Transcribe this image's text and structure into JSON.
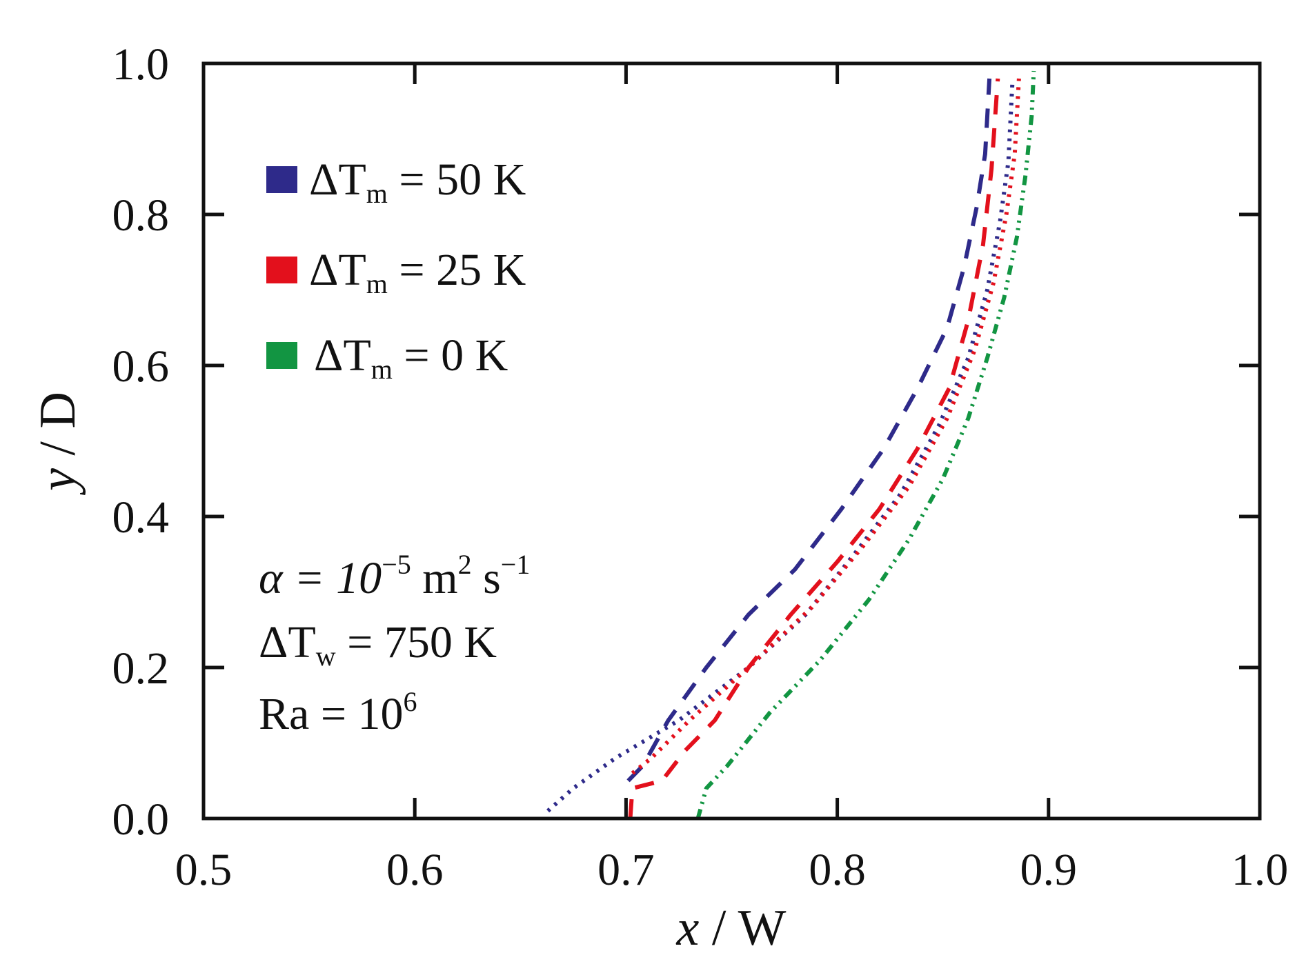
{
  "chart_data": {
    "type": "line",
    "xlabel_var": "x",
    "xlabel_rest": " / W",
    "ylabel_var": "y",
    "ylabel_rest": " / D",
    "xlim": [
      0.5,
      1.0
    ],
    "ylim": [
      0.0,
      1.0
    ],
    "xticks": [
      "0.5",
      "0.6",
      "0.7",
      "0.8",
      "0.9",
      "1.0"
    ],
    "yticks": [
      "0.0",
      "0.2",
      "0.4",
      "0.6",
      "0.8",
      "1.0"
    ],
    "legend": [
      {
        "prefix": "ΔT",
        "sub": "m",
        "suffix": " = 50 K",
        "color": "#2e2a8a"
      },
      {
        "prefix": "ΔT",
        "sub": "m",
        "suffix": " = 25 K",
        "color": "#e3101c"
      },
      {
        "prefix": "ΔT",
        "sub": "m",
        "suffix": " = 0 K",
        "color": "#129542"
      }
    ],
    "annotations": {
      "alpha": {
        "lhs": "α = 10",
        "exp1": "−5",
        "mid": " m",
        "exp2": "2",
        "mid2": " s",
        "exp3": "−1"
      },
      "dtw": {
        "prefix": "ΔT",
        "sub": "w",
        "suffix": " = 750 K"
      },
      "ra": {
        "prefix": "Ra = 10",
        "sup": "6"
      }
    },
    "series": [
      {
        "name": "ΔTm = 50 K dashed",
        "color": "#2e2a8a",
        "dash": "28 20",
        "x": [
          0.701,
          0.708,
          0.72,
          0.738,
          0.758,
          0.78,
          0.802,
          0.822,
          0.838,
          0.852,
          0.86,
          0.866,
          0.87,
          0.872
        ],
        "y": [
          0.05,
          0.07,
          0.13,
          0.2,
          0.27,
          0.33,
          0.41,
          0.49,
          0.57,
          0.65,
          0.73,
          0.81,
          0.88,
          0.98
        ]
      },
      {
        "name": "ΔTm = 50 K dotted",
        "color": "#2e2a8a",
        "dash": "4 9",
        "x": [
          0.663,
          0.675,
          0.695,
          0.725,
          0.758,
          0.785,
          0.808,
          0.83,
          0.848,
          0.862,
          0.871,
          0.877,
          0.881,
          0.883
        ],
        "y": [
          0.01,
          0.04,
          0.08,
          0.13,
          0.2,
          0.27,
          0.35,
          0.43,
          0.52,
          0.61,
          0.7,
          0.79,
          0.87,
          0.98
        ]
      },
      {
        "name": "ΔTm = 25 K dashed",
        "color": "#e3101c",
        "dash": "28 20",
        "x": [
          0.702,
          0.703,
          0.717,
          0.728,
          0.742,
          0.758,
          0.778,
          0.8,
          0.82,
          0.838,
          0.853,
          0.862,
          0.869,
          0.873,
          0.876
        ],
        "y": [
          0.0,
          0.04,
          0.05,
          0.09,
          0.13,
          0.2,
          0.27,
          0.34,
          0.41,
          0.49,
          0.57,
          0.66,
          0.76,
          0.86,
          0.98
        ]
      },
      {
        "name": "ΔTm = 25 K dotted",
        "color": "#e3101c",
        "dash": "4 9",
        "x": [
          0.703,
          0.712,
          0.73,
          0.758,
          0.788,
          0.812,
          0.834,
          0.852,
          0.865,
          0.874,
          0.88,
          0.884,
          0.886
        ],
        "y": [
          0.06,
          0.08,
          0.13,
          0.2,
          0.28,
          0.36,
          0.44,
          0.53,
          0.62,
          0.71,
          0.8,
          0.88,
          0.98
        ]
      },
      {
        "name": "ΔTm = 0 K dash-dot-dot",
        "color": "#129542",
        "dash": "14 8 3 8 3 8",
        "x": [
          0.734,
          0.738,
          0.748,
          0.768,
          0.792,
          0.815,
          0.834,
          0.85,
          0.862,
          0.871,
          0.879,
          0.885,
          0.889,
          0.892,
          0.893
        ],
        "y": [
          0.0,
          0.04,
          0.07,
          0.14,
          0.21,
          0.29,
          0.37,
          0.45,
          0.53,
          0.61,
          0.69,
          0.77,
          0.85,
          0.93,
          0.99
        ]
      }
    ]
  }
}
